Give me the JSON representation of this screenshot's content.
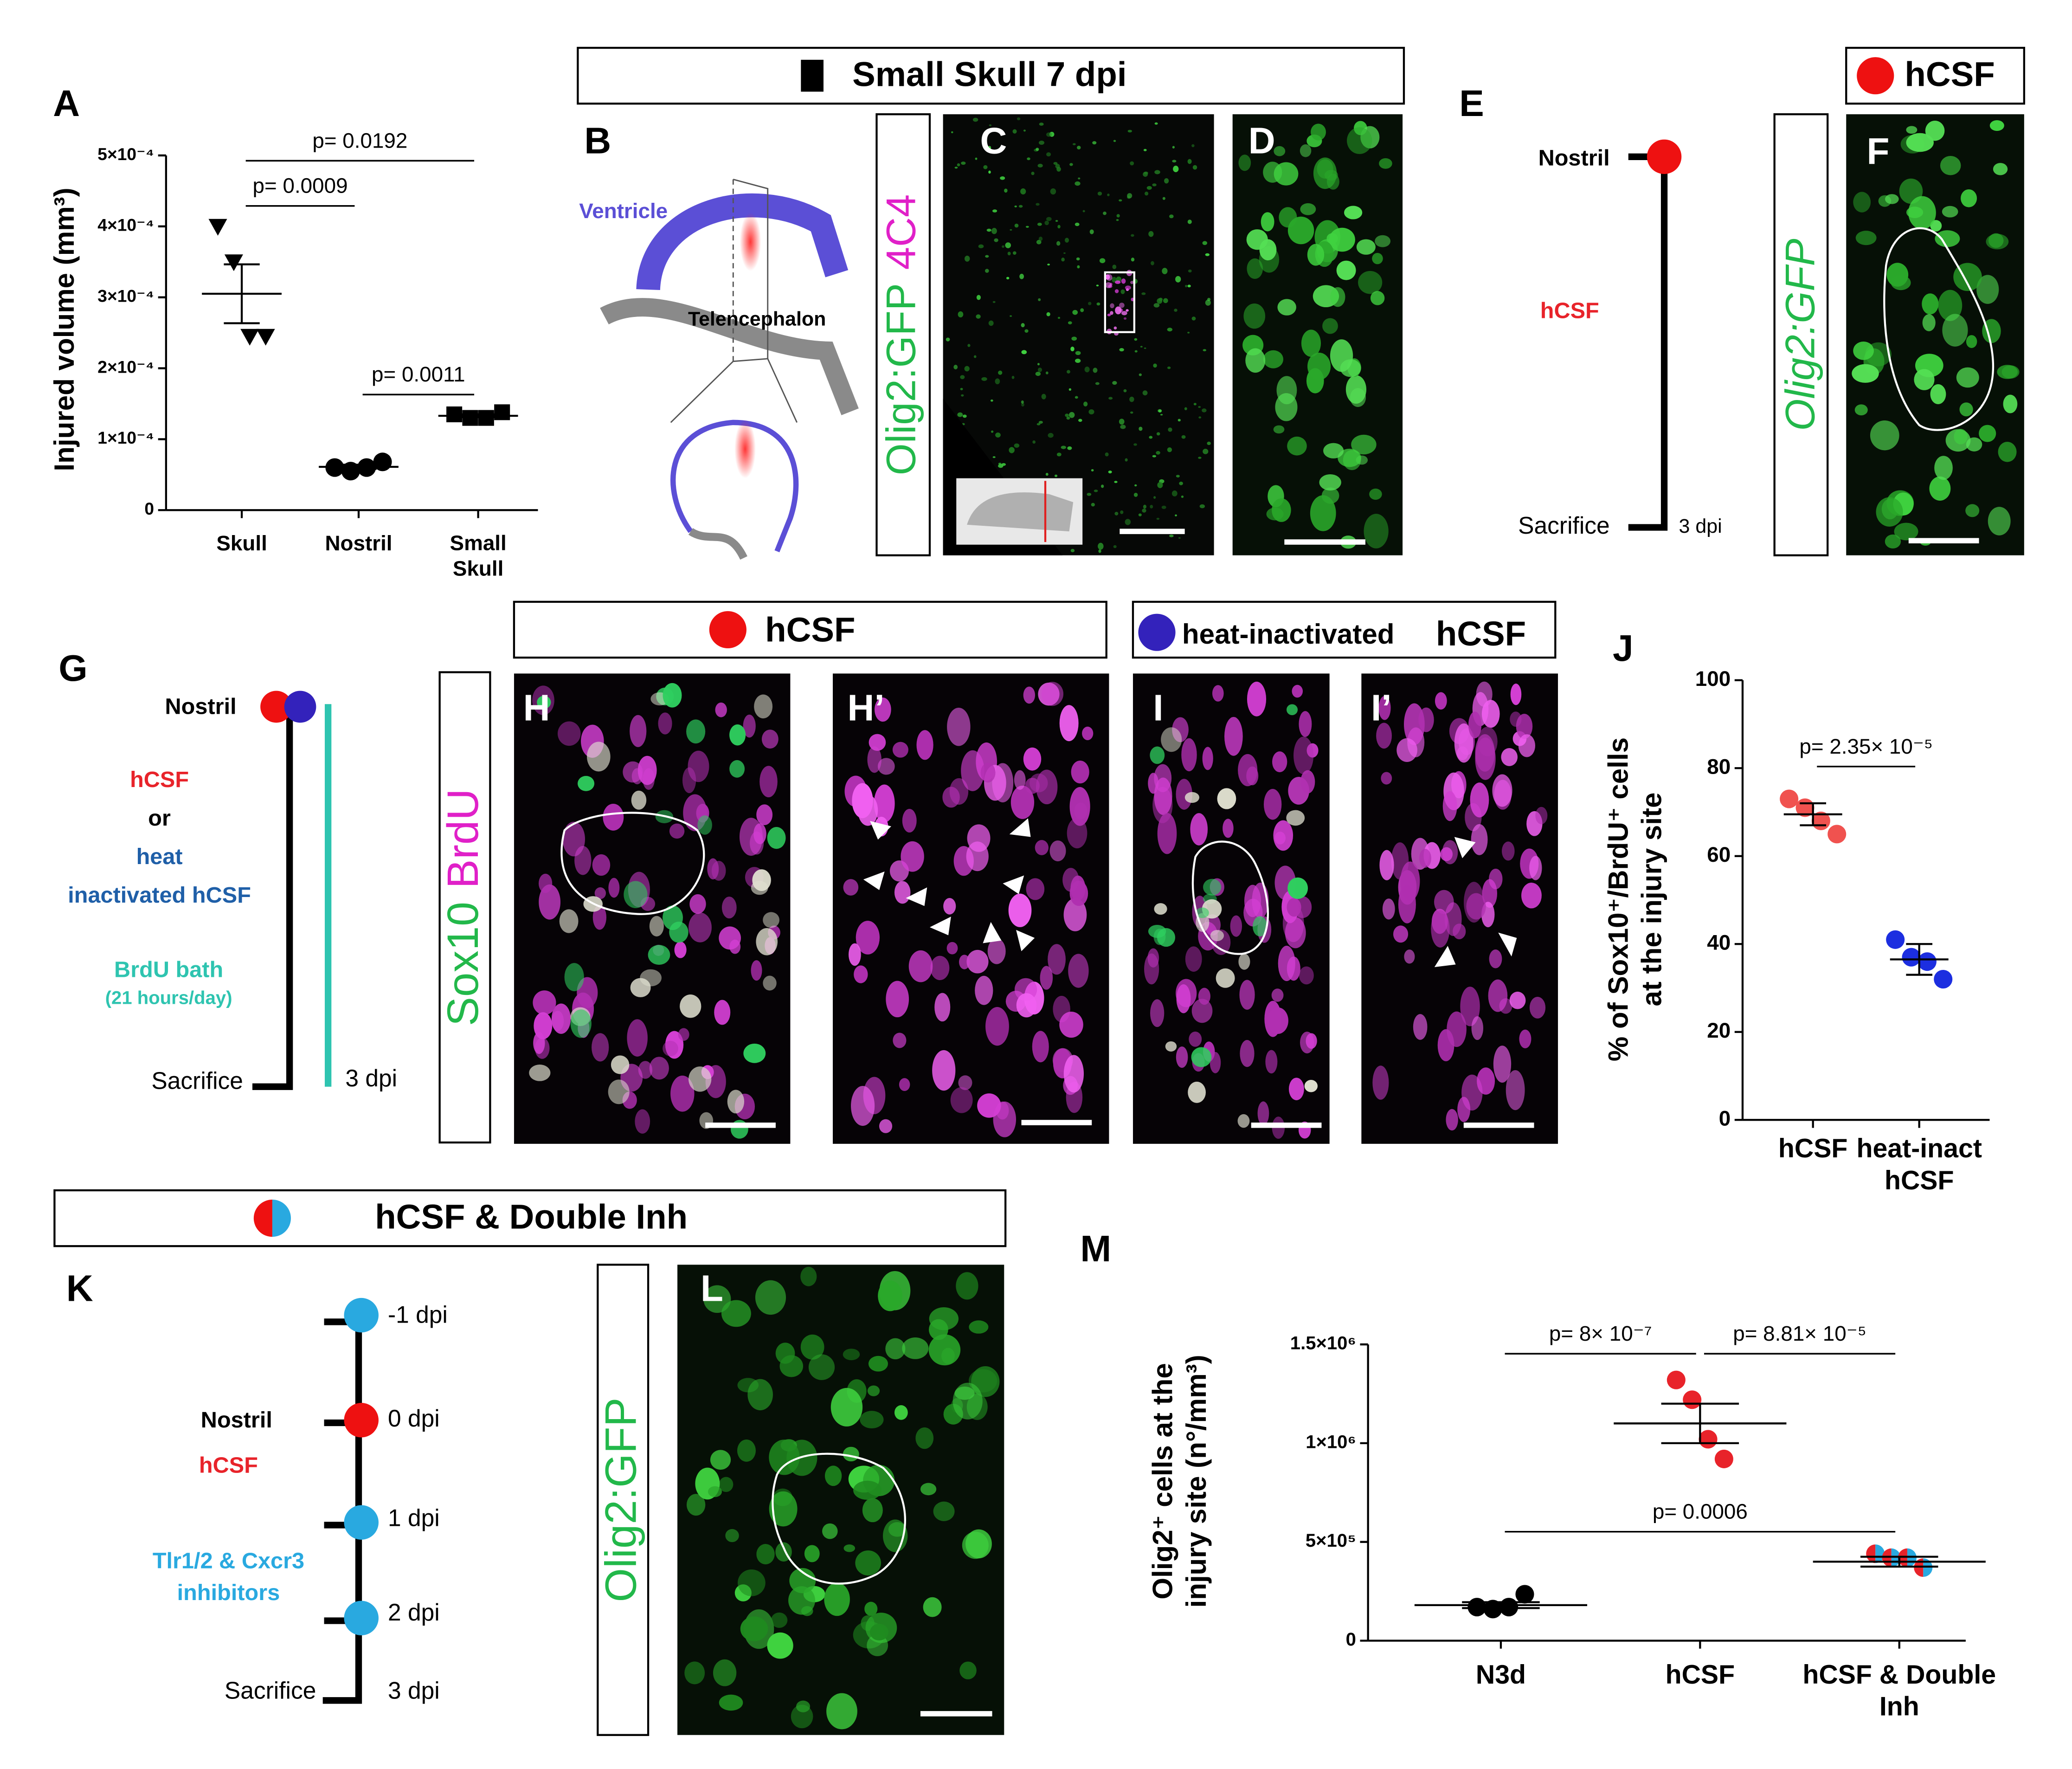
{
  "panels": {
    "labels": [
      "A",
      "B",
      "C",
      "D",
      "E",
      "F",
      "G",
      "H",
      "H’",
      "I",
      "I’",
      "J",
      "K",
      "L",
      "M"
    ]
  },
  "small_skull_header": "Small Skull 7 dpi",
  "b": {
    "ventricle": "Ventricle",
    "telencephalon": "Telencephalon"
  },
  "c": {
    "channels": [
      "Olig2:GFP",
      "4C4"
    ]
  },
  "e": {
    "nostril": "Nostril",
    "treatment": "hCSF",
    "sacrifice": "Sacrifice",
    "time": "3 dpi"
  },
  "f": {
    "header": "hCSF",
    "channel": "Olig2:GFP"
  },
  "g": {
    "nostril": "Nostril",
    "treatment": "hCSF",
    "or": "or",
    "alt_1": "heat",
    "alt_2": "inactivated hCSF",
    "bath": "BrdU bath",
    "bath_note": "(21 hours/day)",
    "sacrifice": "Sacrifice",
    "time": "3 dpi"
  },
  "h": {
    "header": "hCSF",
    "channels": [
      "Sox10",
      "BrdU"
    ]
  },
  "i": {
    "header_prefix": "heat-inactivated",
    "header": "hCSF"
  },
  "k": {
    "header": "hCSF & Double Inh",
    "times": [
      "-1 dpi",
      "0 dpi",
      "1 dpi",
      "2 dpi",
      "3 dpi"
    ],
    "nostril": "Nostril",
    "treatment": "hCSF",
    "inhibitor_1": "Tlr1/2 & Cxcr3",
    "inhibitor_2": "inhibitors",
    "sacrifice": "Sacrifice"
  },
  "l": {
    "channel": "Olig2:GFP"
  },
  "chart_data": [
    {
      "type": "scatter",
      "y_label": "Injured volume (mm³)",
      "categories": [
        "Skull",
        "Nostril",
        "Small\nSkull"
      ],
      "values": [
        [
          0.0004,
          0.00035,
          0.000245,
          0.000245
        ],
        [
          6e-05,
          5.5e-05,
          6e-05,
          6.8e-05
        ],
        [
          0.000135,
          0.00013,
          0.00013,
          0.000138
        ]
      ],
      "means": [
        0.000305,
        6.1e-05,
        0.000133
      ],
      "errors": [
        4.15e-05,
        3e-06,
        2e-06
      ],
      "markers": [
        "triangle-down",
        "circle",
        "square"
      ],
      "colors": [
        [
          "#000000"
        ],
        [
          "#000000"
        ],
        [
          "#000000"
        ]
      ],
      "ylim": [
        0,
        0.0005
      ],
      "yticks": [
        0,
        {
          "value": 0.0001,
          "label": "1×10⁻⁴"
        },
        {
          "value": 0.0002,
          "label": "2×10⁻⁴"
        },
        {
          "value": 0.0003,
          "label": "3×10⁻⁴"
        },
        {
          "value": 0.0004,
          "label": "4×10⁻⁴"
        },
        {
          "value": 0.0005,
          "label": "5×10⁻⁴"
        }
      ],
      "annotations": [
        {
          "text": "p= 0.0192",
          "from": 0,
          "to": 2
        },
        {
          "text": "p= 0.0009",
          "from": 0,
          "to": 1
        },
        {
          "text": "p= 0.0011",
          "from": 1,
          "to": 2
        }
      ]
    },
    {
      "type": "scatter",
      "y_label": "% of Sox10⁺/BrdU⁺ cells\nat the injury site",
      "categories": [
        "hCSF",
        "heat-inact\nhCSF"
      ],
      "values": [
        [
          73,
          71,
          68,
          65
        ],
        [
          41,
          37,
          36,
          32
        ]
      ],
      "means": [
        69.5,
        36.5
      ],
      "errors": [
        2.5,
        3.5
      ],
      "markers": [
        "circle",
        "circle"
      ],
      "colors": [
        [
          "#f0524f"
        ],
        [
          "#1c2ee0"
        ]
      ],
      "ylim": [
        0,
        100
      ],
      "yticks": [
        0,
        20,
        40,
        60,
        80,
        100
      ],
      "annotations": [
        {
          "text": "p= 2.35× 10⁻⁵",
          "from": 0,
          "to": 1
        }
      ]
    },
    {
      "type": "scatter",
      "y_label": "Olig2⁺ cells at  the\ninjury site (n°/mm³)",
      "categories": [
        "N3d",
        "hCSF",
        "hCSF  & Double\nInh"
      ],
      "values": [
        [
          170000,
          160000,
          170000,
          235000
        ],
        [
          1320000,
          1220000,
          1020000,
          920000
        ],
        [
          440000,
          420000,
          420000,
          370000
        ]
      ],
      "means": [
        180000,
        1100000,
        400000
      ],
      "errors": [
        15000,
        100000,
        25000
      ],
      "markers": [
        "circle",
        "circle",
        "circle"
      ],
      "colors": [
        [
          "#000000"
        ],
        [
          "#e8232a"
        ],
        [
          "#e8232a",
          "#29a9e0"
        ]
      ],
      "ylim": [
        0,
        1500000
      ],
      "yticks": [
        0,
        {
          "value": 500000,
          "label": "5×10⁵"
        },
        {
          "value": 1000000,
          "label": "1×10⁶"
        },
        {
          "value": 1500000,
          "label": "1.5×10⁶"
        }
      ],
      "annotations": [
        {
          "text": "p=  8× 10⁻⁷",
          "from": 0,
          "to": 1
        },
        {
          "text": "p=  8.81× 10⁻⁵",
          "from": 1,
          "to": 2
        },
        {
          "text": "p= 0.0006",
          "from": 0,
          "to": 2
        }
      ]
    }
  ]
}
